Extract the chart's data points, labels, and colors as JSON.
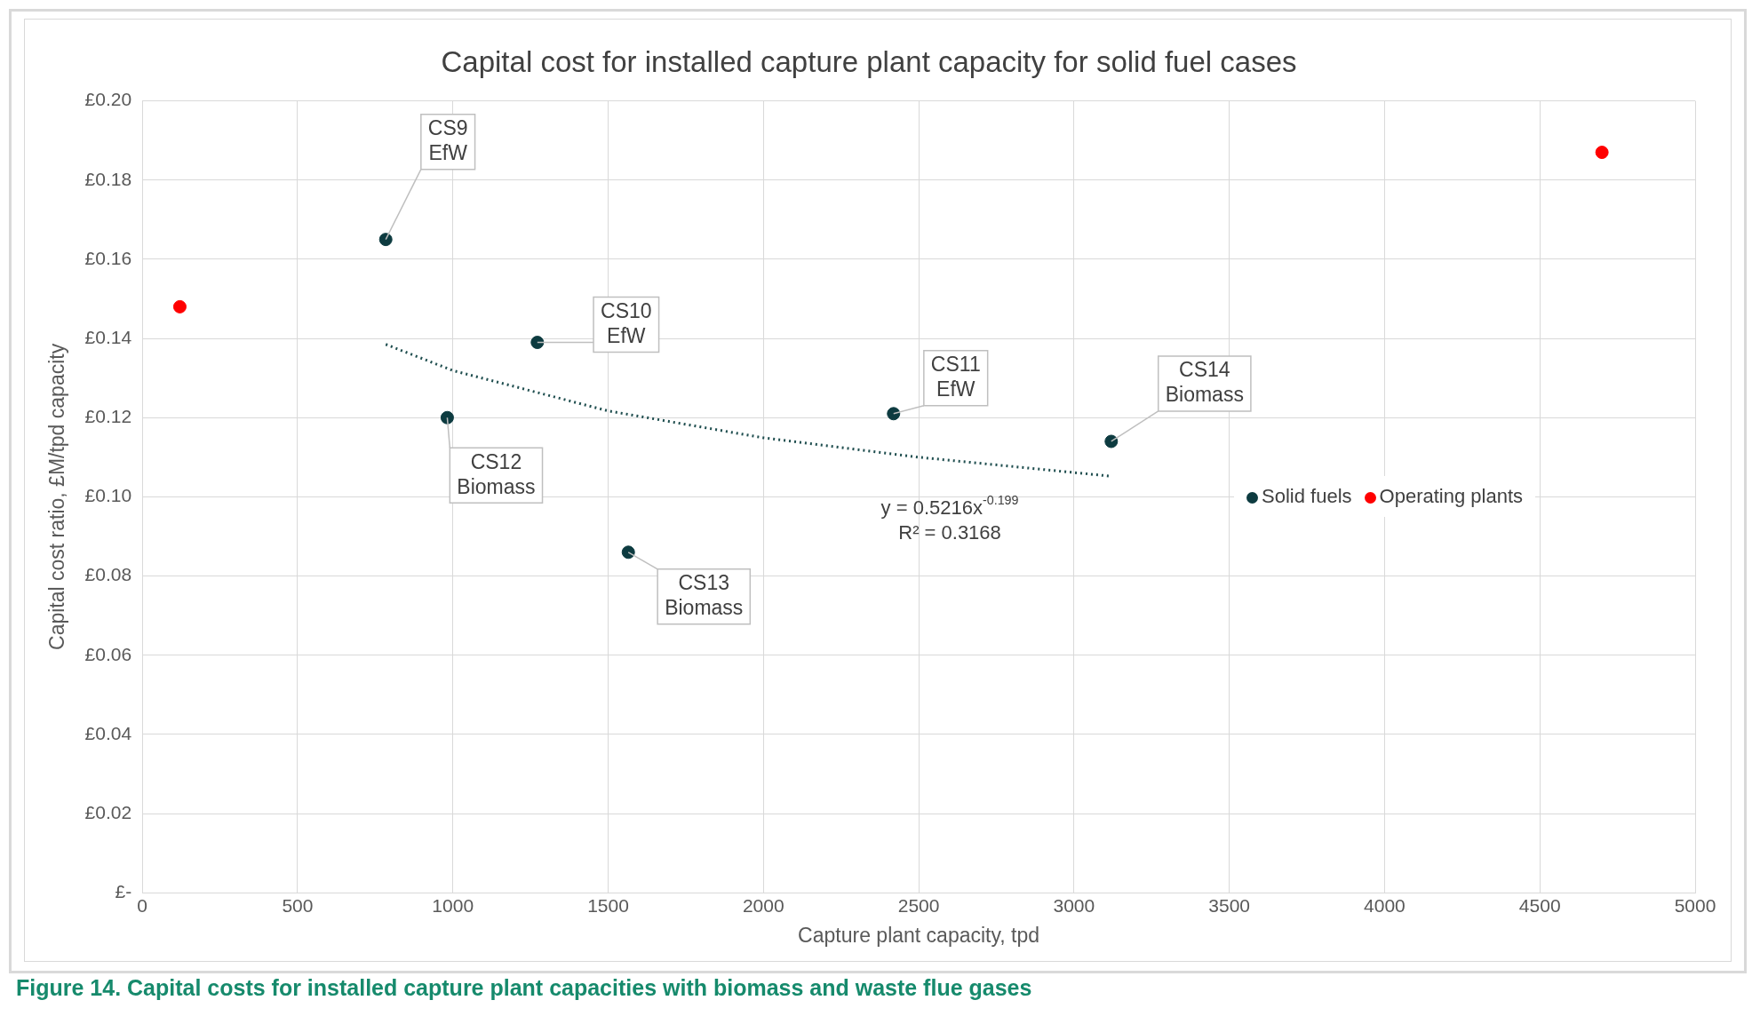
{
  "chart_data": {
    "type": "scatter",
    "title": "Capital cost for installed capture plant capacity for solid fuel cases",
    "xlabel": "Capture plant capacity, tpd",
    "ylabel": "Capital cost ratio, £M/tpd capacity",
    "xlim": [
      0,
      5000
    ],
    "xticks": [
      0,
      500,
      1000,
      1500,
      2000,
      2500,
      3000,
      3500,
      4000,
      4500,
      5000
    ],
    "ylim": [
      0,
      0.2
    ],
    "yticks": [
      {
        "value": 0,
        "label": "£-"
      },
      {
        "value": 0.02,
        "label": "£0.02"
      },
      {
        "value": 0.04,
        "label": "£0.04"
      },
      {
        "value": 0.06,
        "label": "£0.06"
      },
      {
        "value": 0.08,
        "label": "£0.08"
      },
      {
        "value": 0.1,
        "label": "£0.10"
      },
      {
        "value": 0.12,
        "label": "£0.12"
      },
      {
        "value": 0.14,
        "label": "£0.14"
      },
      {
        "value": 0.16,
        "label": "£0.16"
      },
      {
        "value": 0.18,
        "label": "£0.18"
      },
      {
        "value": 0.2,
        "label": "£0.20"
      }
    ],
    "grid": true,
    "legend": "right",
    "marker": "circle",
    "series": [
      {
        "name": "Solid fuels",
        "color": "#0d3b40",
        "x": [
          784,
          1272,
          982,
          2419,
          3120,
          1565
        ],
        "values": [
          0.165,
          0.139,
          0.12,
          0.121,
          0.114,
          0.086
        ]
      },
      {
        "name": "Operating plants",
        "color": "#ff0000",
        "x": [
          121,
          4700
        ],
        "values": [
          0.148,
          0.187
        ]
      },
      {
        "type": "line",
        "color": "#1f4e4f",
        "line_style": "dotted",
        "marker": "none",
        "x": [
          784,
          1000,
          1500,
          2000,
          2500,
          3120
        ],
        "values": [
          0.1385,
          0.1319,
          0.1217,
          0.1149,
          0.11,
          0.1052
        ]
      }
    ],
    "annotations": [
      {
        "text": "CS9\nEfW",
        "x": 784,
        "y": 0.165
      },
      {
        "text": "CS10\nEfW",
        "x": 1272,
        "y": 0.139
      },
      {
        "text": "CS12\nBiomass",
        "x": 982,
        "y": 0.12
      },
      {
        "text": "CS11\nEfW",
        "x": 2419,
        "y": 0.121
      },
      {
        "text": "CS14\nBiomass",
        "x": 3120,
        "y": 0.114
      },
      {
        "text": "CS13\nBiomass",
        "x": 1565,
        "y": 0.086
      },
      "y = 0.5216x$^{-0.199}$\nR² = 0.3168",
      "Figure 14.  Capital costs for installed capture plant capacities with biomass and waste flue gases"
    ]
  }
}
